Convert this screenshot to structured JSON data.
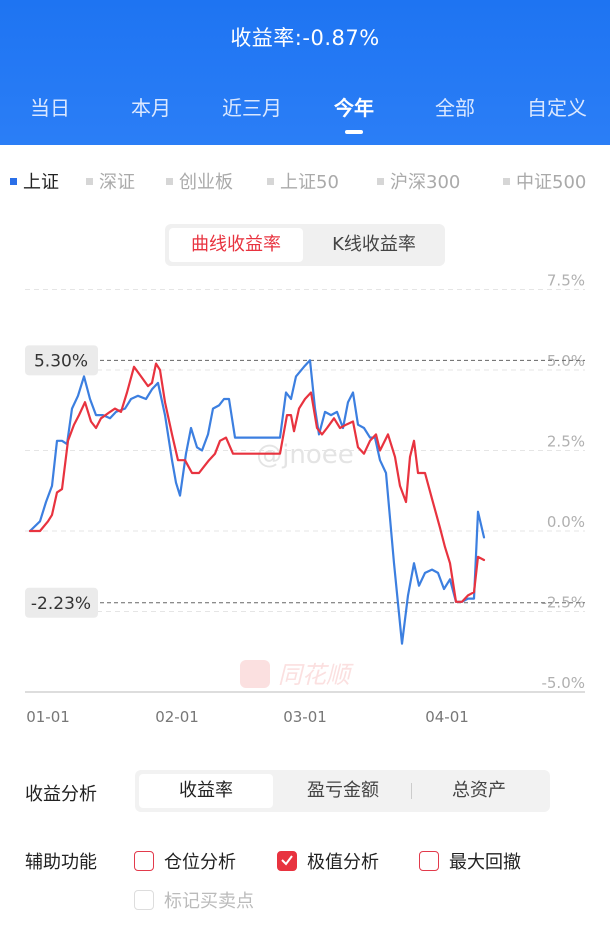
{
  "header": {
    "title": "收益率:-0.87%",
    "tabs": [
      "当日",
      "本月",
      "近三月",
      "今年",
      "全部",
      "自定义"
    ],
    "active_tab": "今年"
  },
  "index_legend": {
    "items": [
      "上证",
      "深证",
      "创业板",
      "上证50",
      "沪深300",
      "中证500"
    ],
    "active": "上证"
  },
  "curve_toggle": {
    "options": [
      "曲线收益率",
      "K线收益率"
    ],
    "active": "曲线收益率"
  },
  "watermarks": {
    "user": "@jnoee",
    "brand": "同花顺"
  },
  "chart_data": {
    "type": "line",
    "y_tick_labels": [
      "7.5%",
      "5.0%",
      "2.5%",
      "0.0%",
      "-2.5%",
      "-5.0%"
    ],
    "x_tick_labels": [
      "01-01",
      "02-01",
      "03-01",
      "04-01"
    ],
    "ylim": [
      -5.0,
      7.5
    ],
    "max_marker": {
      "label": "5.30%",
      "value": 5.3
    },
    "min_marker": {
      "label": "-2.23%",
      "value": -2.23
    },
    "colors": {
      "red": "#e8333f",
      "blue": "#3c7fe0"
    },
    "red_series": [
      [
        30,
        0.0
      ],
      [
        40,
        0.0
      ],
      [
        48,
        0.3
      ],
      [
        52,
        0.5
      ],
      [
        57,
        1.2
      ],
      [
        62,
        1.3
      ],
      [
        68,
        2.8
      ],
      [
        74,
        3.3
      ],
      [
        79,
        3.6
      ],
      [
        85,
        4.0
      ],
      [
        91,
        3.4
      ],
      [
        96,
        3.2
      ],
      [
        101,
        3.5
      ],
      [
        110,
        3.7
      ],
      [
        115,
        3.8
      ],
      [
        121,
        3.7
      ],
      [
        127,
        4.3
      ],
      [
        134,
        5.1
      ],
      [
        141,
        4.8
      ],
      [
        148,
        4.5
      ],
      [
        152,
        4.6
      ],
      [
        156,
        5.2
      ],
      [
        160,
        5.0
      ],
      [
        165,
        4.0
      ],
      [
        172,
        3.0
      ],
      [
        178,
        2.2
      ],
      [
        185,
        2.2
      ],
      [
        192,
        1.8
      ],
      [
        199,
        1.8
      ],
      [
        204,
        2.0
      ],
      [
        209,
        2.2
      ],
      [
        215,
        2.4
      ],
      [
        220,
        2.8
      ],
      [
        226,
        2.9
      ],
      [
        233,
        2.4
      ],
      [
        245,
        2.4
      ],
      [
        257,
        2.4
      ],
      [
        270,
        2.4
      ],
      [
        280,
        2.4
      ],
      [
        287,
        3.6
      ],
      [
        291,
        3.6
      ],
      [
        294,
        3.1
      ],
      [
        299,
        3.8
      ],
      [
        305,
        4.1
      ],
      [
        311,
        4.3
      ],
      [
        317,
        3.2
      ],
      [
        322,
        3.0
      ],
      [
        327,
        3.2
      ],
      [
        334,
        3.5
      ],
      [
        340,
        3.2
      ],
      [
        346,
        3.3
      ],
      [
        353,
        3.4
      ],
      [
        358,
        2.6
      ],
      [
        364,
        2.4
      ],
      [
        370,
        2.8
      ],
      [
        376,
        3.0
      ],
      [
        380,
        2.5
      ],
      [
        388,
        3.0
      ],
      [
        395,
        2.3
      ],
      [
        400,
        1.4
      ],
      [
        406,
        0.9
      ],
      [
        410,
        2.3
      ],
      [
        414,
        2.8
      ],
      [
        418,
        1.8
      ],
      [
        425,
        1.8
      ],
      [
        432,
        1.0
      ],
      [
        440,
        0.1
      ],
      [
        445,
        -0.5
      ],
      [
        450,
        -1.0
      ],
      [
        456,
        -2.2
      ],
      [
        462,
        -2.2
      ],
      [
        468,
        -2.0
      ],
      [
        474,
        -1.9
      ],
      [
        478,
        -0.8
      ],
      [
        484,
        -0.9
      ]
    ],
    "blue_series": [
      [
        30,
        0.0
      ],
      [
        40,
        0.3
      ],
      [
        46,
        0.9
      ],
      [
        52,
        1.4
      ],
      [
        57,
        2.8
      ],
      [
        62,
        2.8
      ],
      [
        67,
        2.7
      ],
      [
        72,
        3.8
      ],
      [
        78,
        4.2
      ],
      [
        84,
        4.8
      ],
      [
        90,
        4.1
      ],
      [
        96,
        3.6
      ],
      [
        103,
        3.6
      ],
      [
        110,
        3.5
      ],
      [
        116,
        3.7
      ],
      [
        125,
        3.8
      ],
      [
        131,
        4.1
      ],
      [
        138,
        4.2
      ],
      [
        146,
        4.1
      ],
      [
        152,
        4.4
      ],
      [
        158,
        4.6
      ],
      [
        165,
        3.6
      ],
      [
        172,
        2.2
      ],
      [
        176,
        1.5
      ],
      [
        180,
        1.1
      ],
      [
        186,
        2.4
      ],
      [
        191,
        3.2
      ],
      [
        197,
        2.6
      ],
      [
        202,
        2.5
      ],
      [
        208,
        3.0
      ],
      [
        213,
        3.8
      ],
      [
        219,
        3.9
      ],
      [
        224,
        4.1
      ],
      [
        229,
        4.1
      ],
      [
        235,
        2.9
      ],
      [
        245,
        2.9
      ],
      [
        257,
        2.9
      ],
      [
        270,
        2.9
      ],
      [
        280,
        2.9
      ],
      [
        286,
        4.3
      ],
      [
        291,
        4.1
      ],
      [
        296,
        4.8
      ],
      [
        304,
        5.1
      ],
      [
        310,
        5.3
      ],
      [
        315,
        3.8
      ],
      [
        319,
        3.0
      ],
      [
        325,
        3.7
      ],
      [
        331,
        3.6
      ],
      [
        337,
        3.7
      ],
      [
        343,
        3.2
      ],
      [
        348,
        4.0
      ],
      [
        353,
        4.3
      ],
      [
        358,
        3.3
      ],
      [
        364,
        3.2
      ],
      [
        370,
        2.9
      ],
      [
        375,
        2.9
      ],
      [
        380,
        2.2
      ],
      [
        386,
        1.8
      ],
      [
        394,
        -1.0
      ],
      [
        402,
        -3.5
      ],
      [
        408,
        -2.0
      ],
      [
        414,
        -1.0
      ],
      [
        419,
        -1.7
      ],
      [
        425,
        -1.3
      ],
      [
        432,
        -1.2
      ],
      [
        438,
        -1.3
      ],
      [
        444,
        -1.8
      ],
      [
        450,
        -1.5
      ],
      [
        456,
        -2.2
      ],
      [
        462,
        -2.2
      ],
      [
        468,
        -2.1
      ],
      [
        474,
        -2.1
      ],
      [
        478,
        0.6
      ],
      [
        484,
        -0.2
      ]
    ]
  },
  "analysis": {
    "label": "收益分析",
    "options": [
      "收益率",
      "盈亏金额",
      "总资产"
    ],
    "active": "收益率"
  },
  "aux": {
    "label": "辅助功能",
    "options": [
      {
        "label": "仓位分析",
        "checked": false,
        "disabled": false
      },
      {
        "label": "极值分析",
        "checked": true,
        "disabled": false
      },
      {
        "label": "最大回撤",
        "checked": false,
        "disabled": false
      },
      {
        "label": "标记买卖点",
        "checked": false,
        "disabled": true
      }
    ]
  }
}
